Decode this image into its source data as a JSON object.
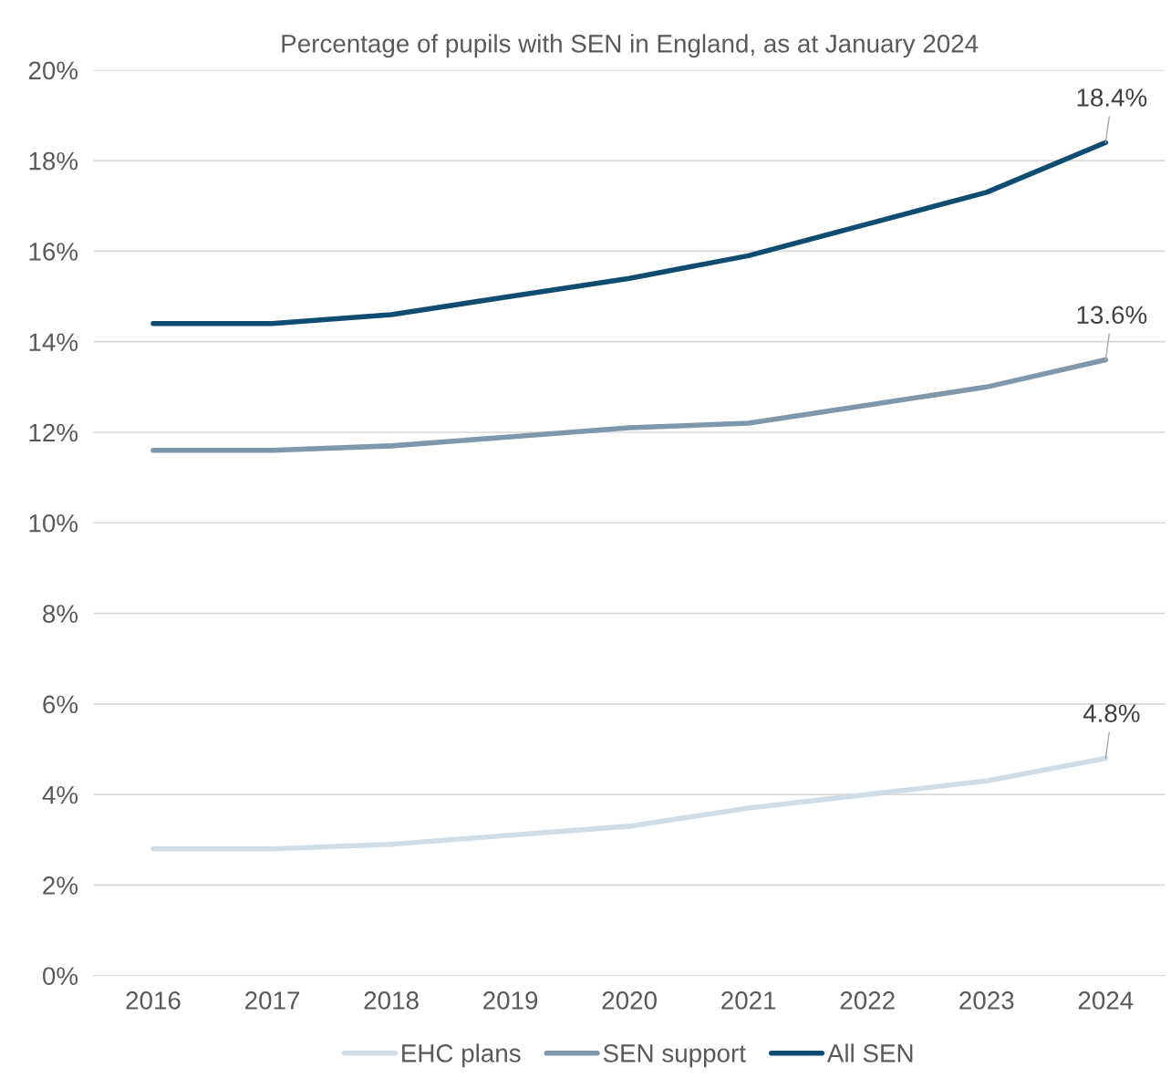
{
  "chart_data": {
    "type": "line",
    "title": "Percentage of pupils with SEN in England, as at January 2024",
    "categories": [
      "2016",
      "2017",
      "2018",
      "2019",
      "2020",
      "2021",
      "2022",
      "2023",
      "2024"
    ],
    "series": [
      {
        "name": "EHC plans",
        "color": "#d0dde6",
        "values": [
          2.8,
          2.8,
          2.9,
          3.1,
          3.3,
          3.7,
          4.0,
          4.3,
          4.8
        ]
      },
      {
        "name": "SEN support",
        "color": "#7f97ab",
        "values": [
          11.6,
          11.6,
          11.7,
          11.9,
          12.1,
          12.2,
          12.6,
          13.0,
          13.6
        ]
      },
      {
        "name": "All SEN",
        "color": "#0f4c72",
        "values": [
          14.4,
          14.4,
          14.6,
          15.0,
          15.4,
          15.9,
          16.6,
          17.3,
          18.4
        ]
      }
    ],
    "ylim": [
      0,
      20
    ],
    "yticks": [
      {
        "value": 0,
        "label": "0%"
      },
      {
        "value": 2,
        "label": "2%"
      },
      {
        "value": 4,
        "label": "4%"
      },
      {
        "value": 6,
        "label": "6%"
      },
      {
        "value": 8,
        "label": "8%"
      },
      {
        "value": 10,
        "label": "10%"
      },
      {
        "value": 12,
        "label": "12%"
      },
      {
        "value": 14,
        "label": "14%"
      },
      {
        "value": 16,
        "label": "16%"
      },
      {
        "value": 18,
        "label": "18%"
      },
      {
        "value": 20,
        "label": "20%"
      }
    ],
    "annotations": [
      {
        "text": "18.4%",
        "x": "2024",
        "y": 18.4
      },
      {
        "text": "13.6%",
        "x": "2024",
        "y": 13.6
      },
      {
        "text": "4.8%",
        "x": "2024",
        "y": 4.8
      }
    ],
    "grid": "y",
    "legend": "bottom",
    "marker": "none",
    "line_style": "solid"
  }
}
